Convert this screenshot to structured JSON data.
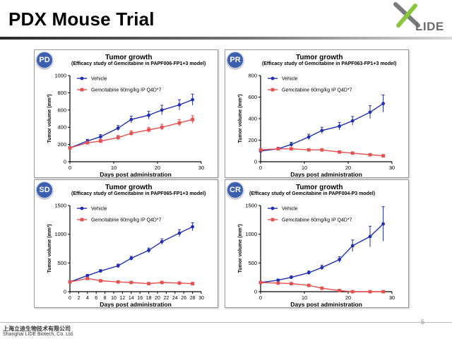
{
  "slide": {
    "title": "PDX Mouse Trial",
    "logo_text": "LIDE",
    "company_cn": "上海立迪生物技术有限公司",
    "company_en": "Shanghai LIDE Biotech, Co. Ltd.",
    "page_number": "5"
  },
  "colors": {
    "vehicle": "#1f2fb4",
    "treatment": "#e84f4f",
    "badge": "#3c5fae"
  },
  "chart_data": [
    {
      "badge": "PD",
      "type": "line",
      "title": "Tumor growth",
      "subtitle": "(Efficacy study of Gemcitabine in PAPF006-FP1+3 model)",
      "xlabel": "Days post administration",
      "ylabel": "Tumor volume (mm³)",
      "xlim": [
        0,
        30
      ],
      "ylim": [
        0,
        1000
      ],
      "xticks": [
        "0",
        "10",
        "20",
        "30"
      ],
      "yticks": [
        "0",
        "200",
        "400",
        "600",
        "800",
        "1000"
      ],
      "legend": "top-left",
      "series": [
        {
          "name": "Vehicle",
          "x": [
            0,
            4,
            7,
            11,
            14,
            18,
            21,
            25,
            28
          ],
          "y": [
            160,
            240,
            290,
            390,
            490,
            540,
            600,
            660,
            720
          ],
          "err": [
            15,
            20,
            25,
            30,
            40,
            45,
            55,
            60,
            65
          ]
        },
        {
          "name": "Gemcitabine 60mg/kg IP Q4D*7",
          "x": [
            0,
            4,
            7,
            11,
            14,
            18,
            21,
            25,
            28
          ],
          "y": [
            160,
            220,
            240,
            280,
            330,
            370,
            400,
            450,
            490
          ],
          "err": [
            15,
            18,
            20,
            25,
            30,
            30,
            35,
            40,
            45
          ]
        }
      ]
    },
    {
      "badge": "PR",
      "type": "line",
      "title": "Tumor growth",
      "subtitle": "(Efficacy study of Gemcitabine in PAPF063-FP1+3 model)",
      "xlabel": "Days post administration",
      "ylabel": "Tumor volume (mm³)",
      "xlim": [
        0,
        30
      ],
      "ylim": [
        0,
        800
      ],
      "xticks": [
        "0",
        "10",
        "20",
        "30"
      ],
      "yticks": [
        "0",
        "200",
        "400",
        "600",
        "800"
      ],
      "legend": "top-left",
      "series": [
        {
          "name": "Vehicle",
          "x": [
            0,
            4,
            7,
            11,
            14,
            18,
            21,
            25,
            28
          ],
          "y": [
            100,
            120,
            160,
            230,
            290,
            330,
            380,
            460,
            540
          ],
          "err": [
            10,
            15,
            20,
            25,
            30,
            35,
            40,
            60,
            80
          ]
        },
        {
          "name": "Gemcitabine 60mg/kg IP Q4D*7",
          "x": [
            0,
            4,
            7,
            11,
            14,
            18,
            21,
            25,
            28
          ],
          "y": [
            110,
            120,
            120,
            110,
            110,
            90,
            80,
            65,
            55
          ],
          "err": [
            10,
            10,
            10,
            10,
            10,
            10,
            8,
            8,
            8
          ]
        }
      ]
    },
    {
      "badge": "SD",
      "type": "line",
      "title": "Tumor growth",
      "subtitle": "(Efficacy study of Gemcitabine in PAPF065-FP1+3 model)",
      "xlabel": "Days post administration",
      "ylabel": "Tumor volume (mm³)",
      "xlim": [
        0,
        30
      ],
      "ylim": [
        0,
        1500
      ],
      "xticks": [
        "0",
        "2",
        "4",
        "6",
        "8",
        "10",
        "12",
        "14",
        "16",
        "18",
        "20",
        "22",
        "24",
        "26",
        "28",
        "30"
      ],
      "yticks": [
        "0",
        "500",
        "1000",
        "1500"
      ],
      "legend": "top-left",
      "series": [
        {
          "name": "Vehicle",
          "x": [
            0,
            4,
            7,
            11,
            14,
            18,
            21,
            25,
            28
          ],
          "y": [
            170,
            280,
            360,
            450,
            580,
            720,
            870,
            1020,
            1130
          ],
          "err": [
            15,
            20,
            25,
            30,
            35,
            40,
            50,
            60,
            70
          ]
        },
        {
          "name": "Gemcitabine 60mg/kg IP Q4D*7",
          "x": [
            0,
            4,
            7,
            11,
            14,
            18,
            21,
            25,
            28
          ],
          "y": [
            170,
            230,
            190,
            170,
            160,
            140,
            160,
            150,
            140
          ],
          "err": [
            15,
            20,
            15,
            15,
            15,
            12,
            12,
            12,
            12
          ]
        }
      ]
    },
    {
      "badge": "CR",
      "type": "line",
      "title": "Tumor growth",
      "subtitle": "(Efficacy study of Gemcitabine in PAPF004-P3 model)",
      "xlabel": "Days post administration",
      "ylabel": "Tumor volume (mm³)",
      "xlim": [
        0,
        30
      ],
      "ylim": [
        0,
        1500
      ],
      "xticks": [
        "0",
        "10",
        "20",
        "30"
      ],
      "yticks": [
        "0",
        "500",
        "1000",
        "1500"
      ],
      "legend": "top-left",
      "series": [
        {
          "name": "Vehicle",
          "x": [
            0,
            4,
            7,
            11,
            14,
            18,
            21,
            25,
            28
          ],
          "y": [
            160,
            200,
            250,
            330,
            420,
            560,
            800,
            960,
            1180
          ],
          "err": [
            15,
            20,
            25,
            30,
            40,
            50,
            100,
            180,
            300
          ]
        },
        {
          "name": "Gemcitabine 60mg/kg IP Q4D*7",
          "x": [
            0,
            4,
            7,
            11,
            14,
            18,
            21,
            25,
            28
          ],
          "y": [
            160,
            150,
            140,
            110,
            60,
            20,
            0,
            0,
            0
          ],
          "err": [
            10,
            10,
            10,
            10,
            8,
            5,
            0,
            0,
            0
          ]
        }
      ]
    }
  ]
}
